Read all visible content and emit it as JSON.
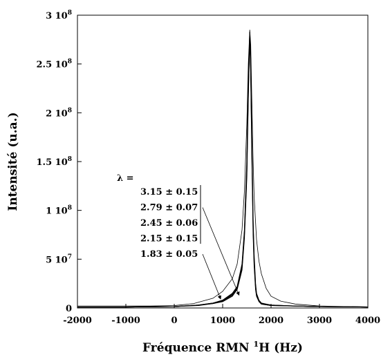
{
  "chart_data": {
    "type": "line",
    "title": "",
    "xlabel": "Fréquence RMN ¹H (Hz)",
    "xlabel_parts": {
      "prefix": "Fréquence RMN ",
      "superscript": "1",
      "suffix": "H (Hz)"
    },
    "ylabel": "Intensité (u.a.)",
    "xlim": [
      -2000,
      4000
    ],
    "ylim": [
      0,
      300000000
    ],
    "grid": false,
    "x_ticks": [
      {
        "value": -2000,
        "label": "-2000"
      },
      {
        "value": -1000,
        "label": "-1000"
      },
      {
        "value": 0,
        "label": "0"
      },
      {
        "value": 1000,
        "label": "1000"
      },
      {
        "value": 2000,
        "label": "2000"
      },
      {
        "value": 3000,
        "label": "3000"
      },
      {
        "value": 4000,
        "label": "4000"
      }
    ],
    "y_ticks": [
      {
        "value": 0,
        "mantissa": "0",
        "exponent": ""
      },
      {
        "value": 50000000,
        "mantissa": "5 10",
        "exponent": "7"
      },
      {
        "value": 100000000,
        "mantissa": "1 10",
        "exponent": "8"
      },
      {
        "value": 150000000,
        "mantissa": "1.5 10",
        "exponent": "8"
      },
      {
        "value": 200000000,
        "mantissa": "2 10",
        "exponent": "8"
      },
      {
        "value": 250000000,
        "mantissa": "2.5 10",
        "exponent": "8"
      },
      {
        "value": 300000000,
        "mantissa": "3 10",
        "exponent": "8"
      }
    ],
    "legend": {
      "header": "λ =",
      "entries": [
        "3.15 ± 0.15",
        "2.79 ± 0.07",
        "2.45 ± 0.06",
        "2.15 ± 0.15",
        "1.83 ± 0.05"
      ]
    },
    "series": [
      {
        "x": [
          -2000,
          -1500,
          -1000,
          -500,
          0,
          400,
          800,
          1000,
          1200,
          1300,
          1400,
          1450,
          1500,
          1530,
          1560,
          1580,
          1600,
          1630,
          1650,
          1700,
          1750,
          1800,
          1900,
          2000,
          2200,
          2500,
          3000,
          3500,
          4000
        ],
        "y": [
          2000000,
          2000000,
          2000000,
          2000000,
          2500000,
          4500000,
          10000000,
          17000000,
          30000000,
          45000000,
          80000000,
          120000000,
          190000000,
          250000000,
          285000000,
          270000000,
          220000000,
          150000000,
          115000000,
          70000000,
          48000000,
          35000000,
          20000000,
          12000000,
          7000000,
          4000000,
          2000000,
          1500000,
          1000000
        ]
      },
      {
        "x": [
          -2000,
          -1000,
          0,
          500,
          800,
          1000,
          1200,
          1300,
          1400,
          1450,
          1500,
          1530,
          1560,
          1580,
          1600,
          1630,
          1650,
          1680,
          1700,
          1750,
          1800,
          2000,
          2500,
          3000,
          4000
        ],
        "y": [
          1000000,
          1000000,
          1500000,
          3000000,
          5000000,
          8000000,
          15000000,
          22000000,
          45000000,
          80000000,
          150000000,
          230000000,
          283000000,
          255000000,
          180000000,
          90000000,
          55000000,
          25000000,
          15000000,
          8000000,
          5000000,
          3000000,
          2000000,
          1500000,
          1000000
        ]
      },
      {
        "x": [
          -2000,
          -1000,
          0,
          500,
          800,
          1000,
          1200,
          1300,
          1400,
          1450,
          1500,
          1530,
          1560,
          1580,
          1600,
          1630,
          1650,
          1680,
          1700,
          1750,
          1800,
          2000,
          2500,
          3000,
          4000
        ],
        "y": [
          1000000,
          1000000,
          1500000,
          3000000,
          5000000,
          7500000,
          14000000,
          21000000,
          43000000,
          78000000,
          145000000,
          225000000,
          281000000,
          250000000,
          175000000,
          85000000,
          50000000,
          23000000,
          14000000,
          7500000,
          4500000,
          3000000,
          2000000,
          1500000,
          1000000
        ]
      },
      {
        "x": [
          -2000,
          -1000,
          0,
          500,
          800,
          1000,
          1200,
          1300,
          1400,
          1450,
          1500,
          1530,
          1560,
          1580,
          1600,
          1630,
          1650,
          1680,
          1700,
          1750,
          1800,
          2000,
          2500,
          3000,
          4000
        ],
        "y": [
          1000000,
          1000000,
          1500000,
          3000000,
          4500000,
          7000000,
          13000000,
          20000000,
          41000000,
          75000000,
          140000000,
          220000000,
          279000000,
          245000000,
          170000000,
          80000000,
          47000000,
          21000000,
          13000000,
          7000000,
          4000000,
          2500000,
          2000000,
          1500000,
          1000000
        ]
      },
      {
        "x": [
          -2000,
          -1000,
          0,
          500,
          800,
          1000,
          1200,
          1300,
          1400,
          1450,
          1500,
          1530,
          1560,
          1580,
          1600,
          1630,
          1650,
          1680,
          1700,
          1750,
          1800,
          2000,
          2500,
          3000,
          4000
        ],
        "y": [
          1000000,
          1000000,
          1500000,
          2500000,
          4500000,
          6500000,
          12000000,
          19000000,
          39000000,
          72000000,
          135000000,
          215000000,
          277000000,
          240000000,
          165000000,
          75000000,
          44000000,
          19000000,
          12000000,
          6500000,
          4000000,
          2500000,
          2000000,
          1500000,
          1000000
        ]
      }
    ],
    "annotations": [
      {
        "label_index": 1,
        "to_x": 1340,
        "to_y": 13000000
      },
      {
        "label_index": 4,
        "to_x": 960,
        "to_y": 9000000
      }
    ]
  }
}
